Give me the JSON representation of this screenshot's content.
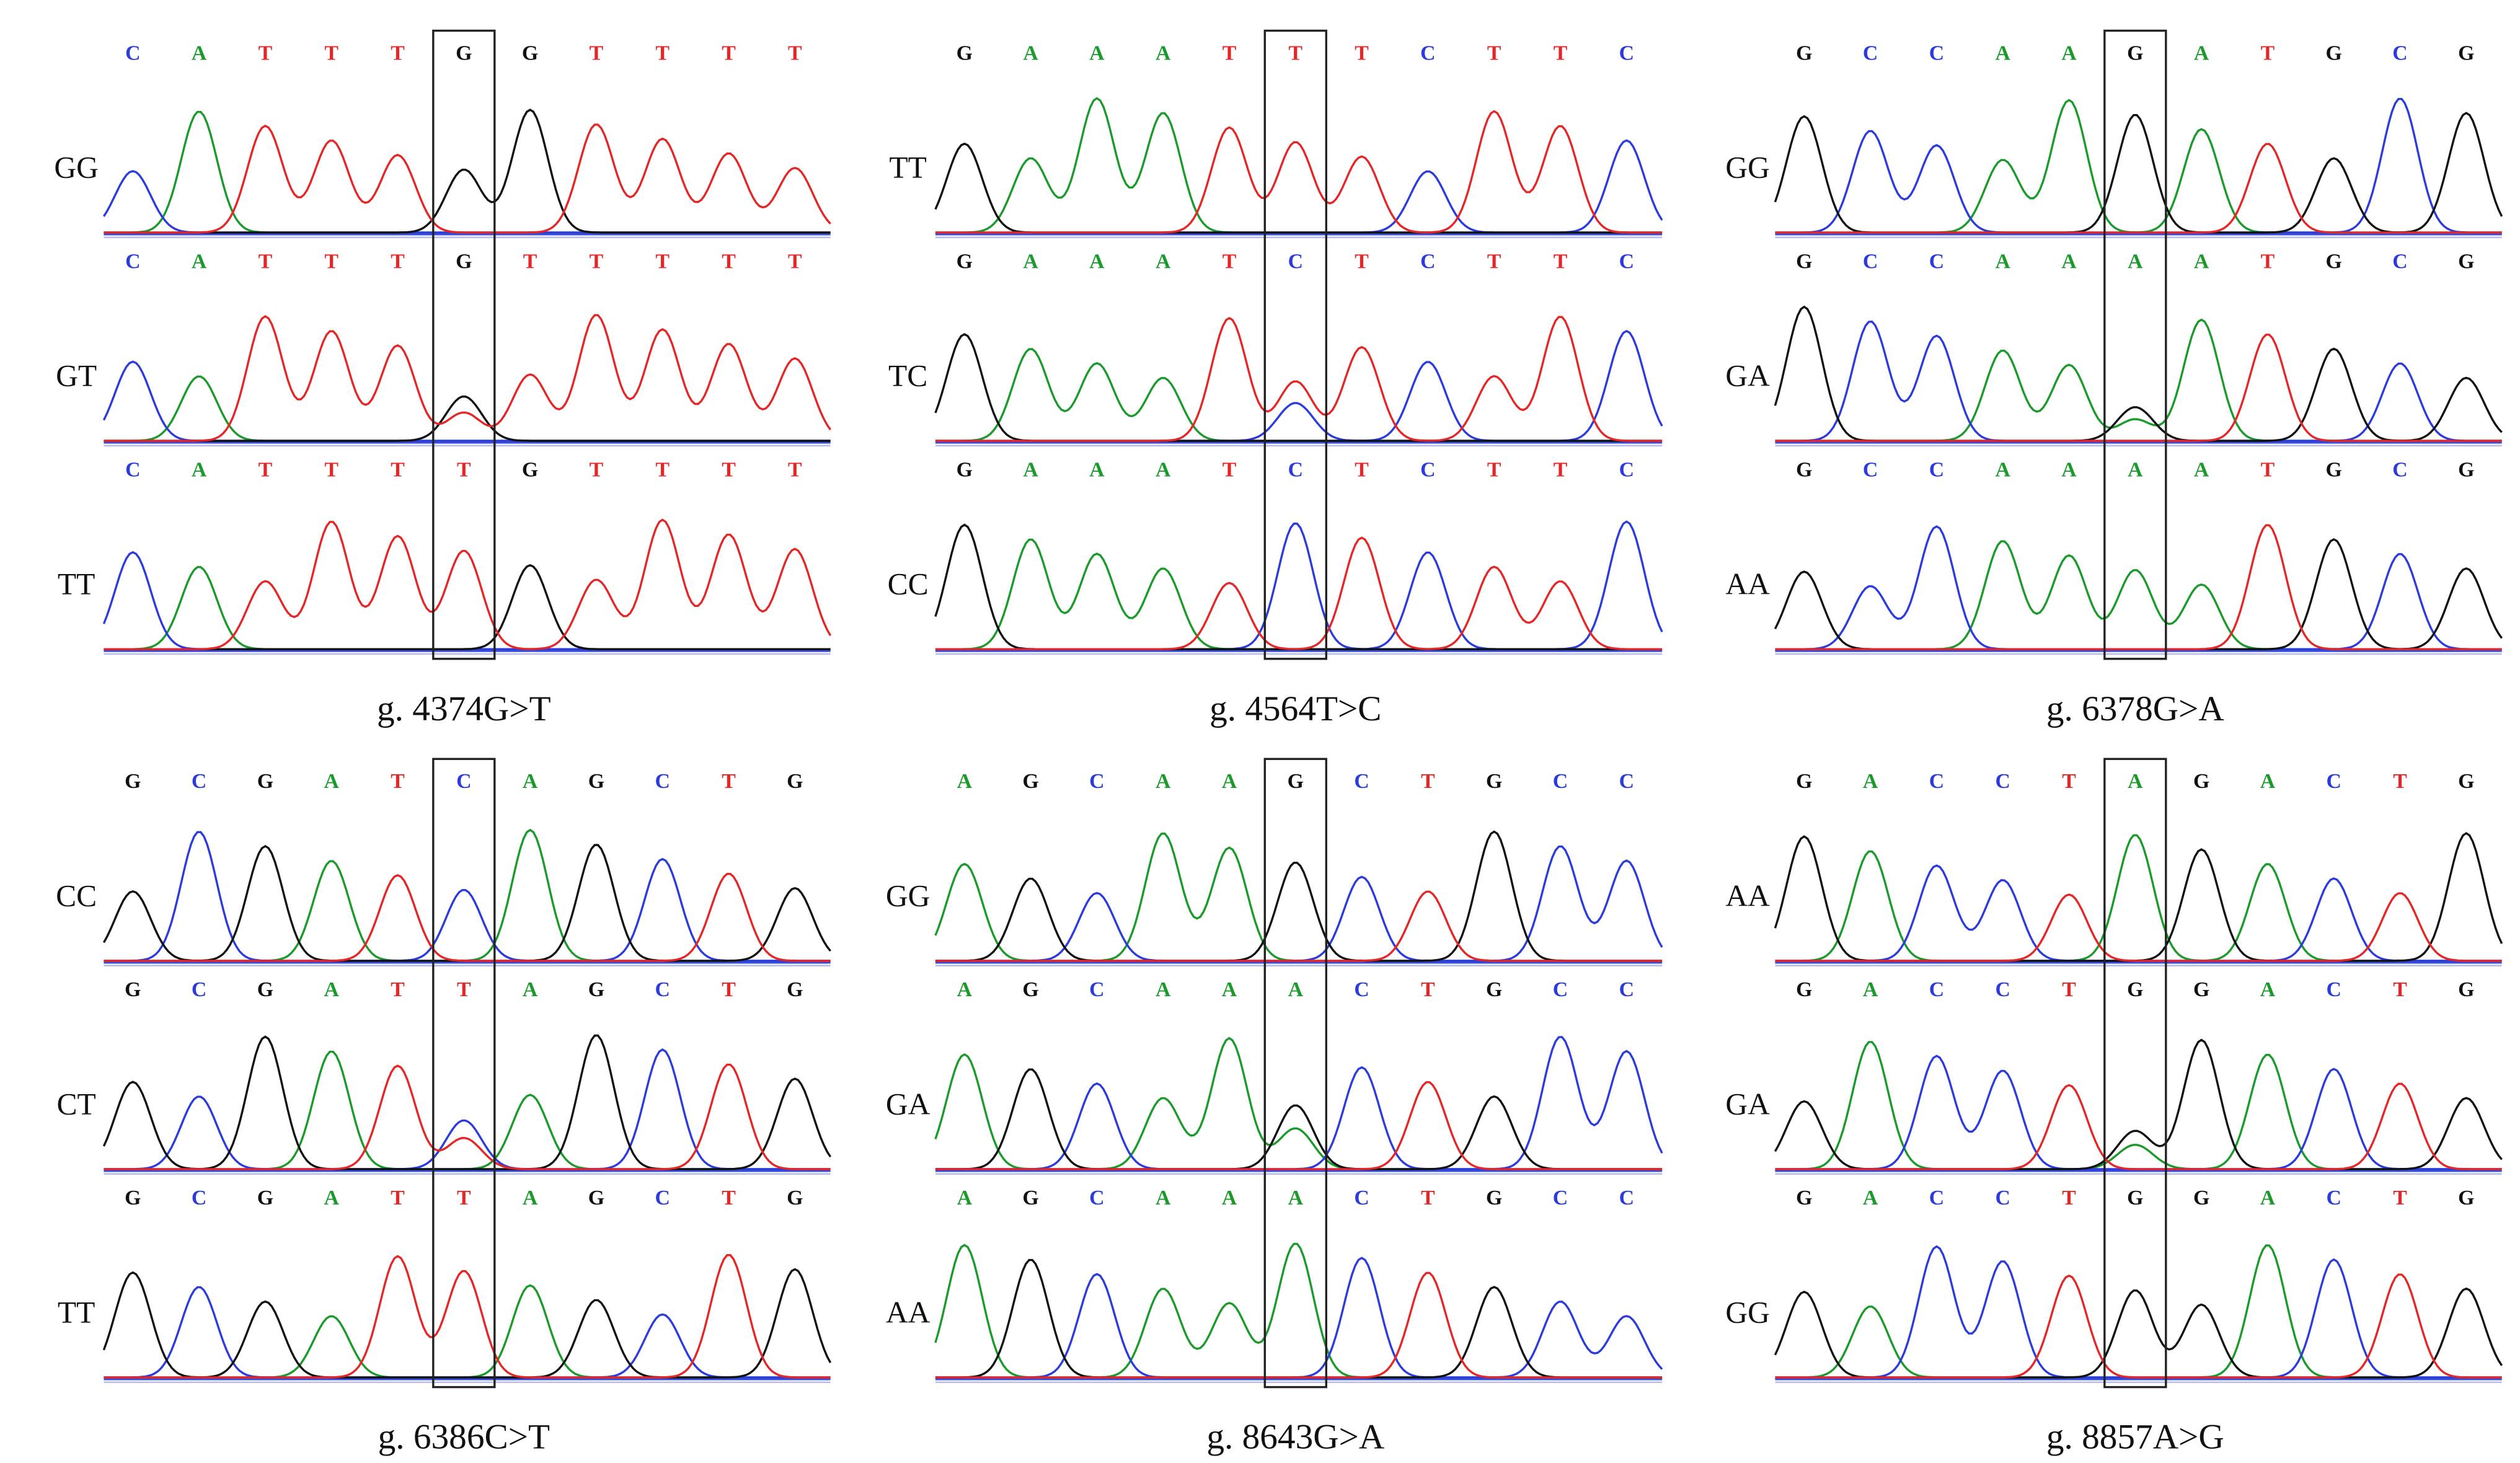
{
  "panels": [
    {
      "caption": "g. 4374G>T",
      "rows": [
        {
          "genotype": "GG",
          "bases": [
            "C",
            "A",
            "T",
            "T",
            "T",
            "G",
            "G",
            "T",
            "T",
            "T",
            "T"
          ]
        },
        {
          "genotype": "GT",
          "bases": [
            "C",
            "A",
            "T",
            "T",
            "T",
            "G",
            "T",
            "T",
            "T",
            "T",
            "T"
          ]
        },
        {
          "genotype": "TT",
          "bases": [
            "C",
            "A",
            "T",
            "T",
            "T",
            "T",
            "G",
            "T",
            "T",
            "T",
            "T"
          ]
        }
      ]
    },
    {
      "caption": "g. 4564T>C",
      "rows": [
        {
          "genotype": "TT",
          "bases": [
            "G",
            "A",
            "A",
            "A",
            "T",
            "T",
            "T",
            "C",
            "T",
            "T",
            "C"
          ]
        },
        {
          "genotype": "TC",
          "bases": [
            "G",
            "A",
            "A",
            "A",
            "T",
            "C",
            "T",
            "C",
            "T",
            "T",
            "C"
          ]
        },
        {
          "genotype": "CC",
          "bases": [
            "G",
            "A",
            "A",
            "A",
            "T",
            "C",
            "T",
            "C",
            "T",
            "T",
            "C"
          ]
        }
      ]
    },
    {
      "caption": "g. 6378G>A",
      "rows": [
        {
          "genotype": "GG",
          "bases": [
            "G",
            "C",
            "C",
            "A",
            "A",
            "G",
            "A",
            "T",
            "G",
            "C",
            "G"
          ]
        },
        {
          "genotype": "GA",
          "bases": [
            "G",
            "C",
            "C",
            "A",
            "A",
            "A",
            "A",
            "T",
            "G",
            "C",
            "G"
          ]
        },
        {
          "genotype": "AA",
          "bases": [
            "G",
            "C",
            "C",
            "A",
            "A",
            "A",
            "A",
            "T",
            "G",
            "C",
            "G"
          ]
        }
      ]
    },
    {
      "caption": "g. 6386C>T",
      "rows": [
        {
          "genotype": "CC",
          "bases": [
            "G",
            "C",
            "G",
            "A",
            "T",
            "C",
            "A",
            "G",
            "C",
            "T",
            "G"
          ]
        },
        {
          "genotype": "CT",
          "bases": [
            "G",
            "C",
            "G",
            "A",
            "T",
            "T",
            "A",
            "G",
            "C",
            "T",
            "G"
          ]
        },
        {
          "genotype": "TT",
          "bases": [
            "G",
            "C",
            "G",
            "A",
            "T",
            "T",
            "A",
            "G",
            "C",
            "T",
            "G"
          ]
        }
      ]
    },
    {
      "caption": "g. 8643G>A",
      "rows": [
        {
          "genotype": "GG",
          "bases": [
            "A",
            "G",
            "C",
            "A",
            "A",
            "G",
            "C",
            "T",
            "G",
            "C",
            "C"
          ]
        },
        {
          "genotype": "GA",
          "bases": [
            "A",
            "G",
            "C",
            "A",
            "A",
            "A",
            "C",
            "T",
            "G",
            "C",
            "C"
          ]
        },
        {
          "genotype": "AA",
          "bases": [
            "A",
            "G",
            "C",
            "A",
            "A",
            "A",
            "C",
            "T",
            "G",
            "C",
            "C"
          ]
        }
      ]
    },
    {
      "caption": "g. 8857A>G",
      "rows": [
        {
          "genotype": "AA",
          "bases": [
            "G",
            "A",
            "C",
            "C",
            "T",
            "A",
            "G",
            "A",
            "C",
            "T",
            "G"
          ]
        },
        {
          "genotype": "GA",
          "bases": [
            "G",
            "A",
            "C",
            "C",
            "T",
            "G",
            "G",
            "A",
            "C",
            "T",
            "G"
          ]
        },
        {
          "genotype": "GG",
          "bases": [
            "G",
            "A",
            "C",
            "C",
            "T",
            "G",
            "G",
            "A",
            "C",
            "T",
            "G"
          ]
        }
      ]
    }
  ]
}
